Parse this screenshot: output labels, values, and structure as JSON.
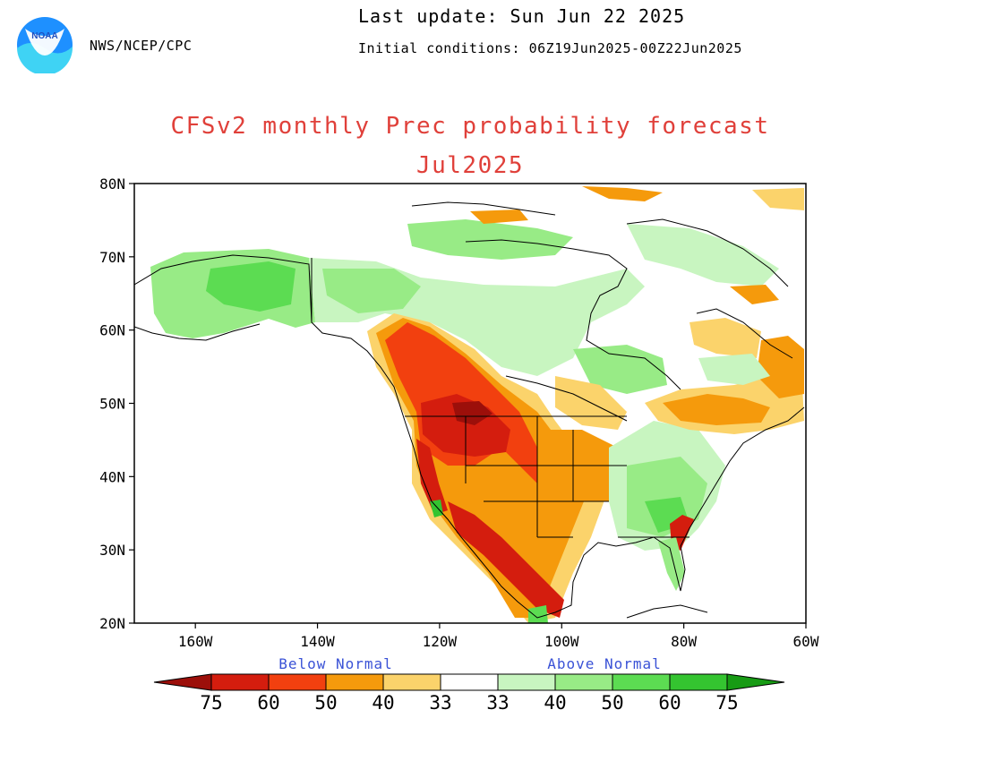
{
  "header": {
    "agency": "NWS/NCEP/CPC",
    "last_update": "Last update: Sun Jun 22 2025",
    "initial_conditions": "Initial conditions: 06Z19Jun2025-00Z22Jun2025",
    "logo_text": "NOAA"
  },
  "title": {
    "line1": "CFSv2 monthly Prec probability forecast",
    "line2": "Jul2025"
  },
  "map": {
    "lat_labels": [
      "80N",
      "70N",
      "60N",
      "50N",
      "40N",
      "30N",
      "20N"
    ],
    "lon_labels": [
      "160W",
      "140W",
      "120W",
      "100W",
      "80W",
      "60W"
    ],
    "lat_range": [
      20,
      80
    ],
    "lon_range": [
      -170,
      -60
    ],
    "regions": [
      {
        "name": "Alaska",
        "category": "above",
        "level": 50
      },
      {
        "name": "Canadian Arctic",
        "category": "above",
        "level": 40
      },
      {
        "name": "Pacific Northwest",
        "category": "below",
        "level": 60
      },
      {
        "name": "Northern Rockies",
        "category": "below",
        "level": 75
      },
      {
        "name": "Southwest US",
        "category": "below",
        "level": 60
      },
      {
        "name": "Central Plains",
        "category": "below",
        "level": 40
      },
      {
        "name": "Southeast US",
        "category": "above",
        "level": 50
      },
      {
        "name": "Quebec",
        "category": "below",
        "level": 50
      },
      {
        "name": "Hudson Bay",
        "category": "above",
        "level": 40
      }
    ]
  },
  "legend": {
    "below_label": "Below Normal",
    "above_label": "Above Normal",
    "numbers": [
      "75",
      "60",
      "50",
      "40",
      "33",
      "33",
      "40",
      "50",
      "60",
      "75"
    ],
    "below_colors": [
      "#9c0f0a",
      "#d41d0e",
      "#f2400f",
      "#f59a0c",
      "#fbd36b"
    ],
    "neutral_color": "#ffffff",
    "above_colors": [
      "#c8f5c0",
      "#98eb86",
      "#5cdc52",
      "#34c430",
      "#179b14"
    ]
  }
}
